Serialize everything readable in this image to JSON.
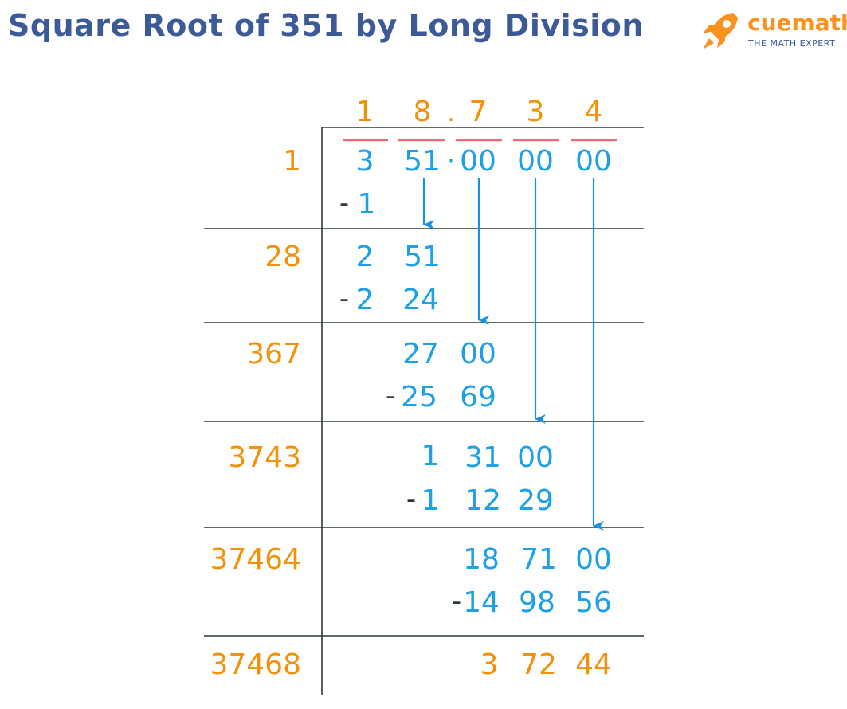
{
  "header": {
    "title": "Square Root of 351 by Long Division"
  },
  "logo": {
    "name": "cuemath",
    "tagline": "THE MATH EXPERT",
    "icon": "rocket-icon",
    "colors": {
      "rocket": "#f7931e",
      "tagline": "#3d5a98"
    }
  },
  "colors": {
    "title": "#3d5a98",
    "divisor": "#f2920a",
    "digits": "#1ea0e6",
    "operator": "#2b3a2f",
    "quotient_bar": "#ef6b7a",
    "lines": "#2b3a2f"
  },
  "quotient": {
    "d1": "1",
    "d2": "8",
    "point": ".",
    "d3": "7",
    "d4": "3",
    "d5": "4"
  },
  "dividend": {
    "g1": "3",
    "g2": "51",
    "point": "·",
    "g3": "00",
    "g4": "00",
    "g5": "00"
  },
  "steps": {
    "s1": {
      "divisor": "1",
      "sub": "1"
    },
    "s2": {
      "divisor": "28",
      "num": [
        "2",
        "51"
      ],
      "sub": [
        "2",
        "24"
      ]
    },
    "s3": {
      "divisor": "367",
      "num": [
        "27",
        "00"
      ],
      "sub": [
        "25",
        "69"
      ]
    },
    "s4": {
      "divisor": "3743",
      "num": [
        "1",
        "31",
        "00"
      ],
      "sub": [
        "1",
        "12",
        "29"
      ]
    },
    "s5": {
      "divisor": "37464",
      "num": [
        "18",
        "71",
        "00"
      ],
      "sub": [
        "14",
        "98",
        "56"
      ]
    },
    "s6": {
      "divisor": "37468",
      "remainder": [
        "3",
        "72",
        "44"
      ]
    }
  },
  "minus_sign": "-"
}
